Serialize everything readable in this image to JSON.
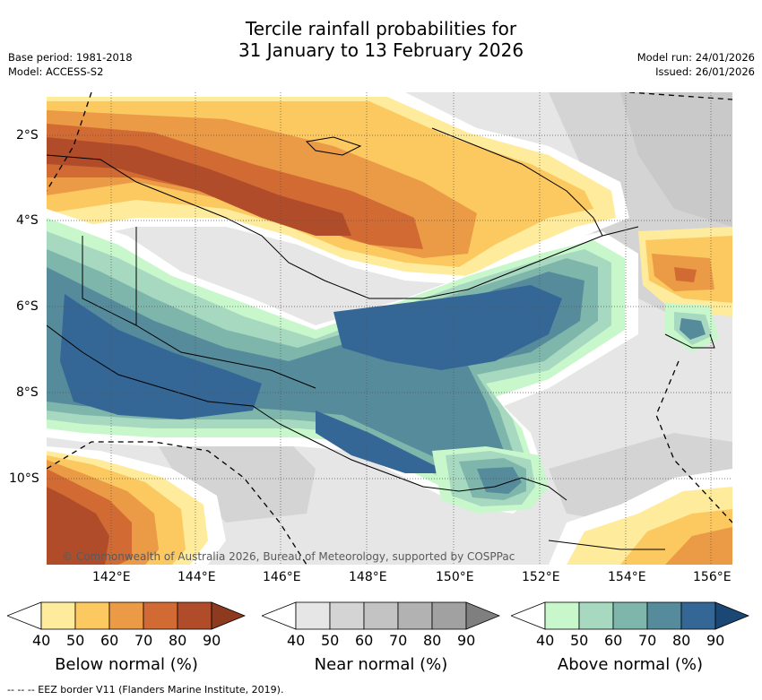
{
  "title": {
    "line1": "Tercile rainfall probabilities for",
    "line2": "31 January to 13 February 2026"
  },
  "meta_left": {
    "base_period": "Base period: 1981-2018",
    "model": "Model: ACCESS-S2"
  },
  "meta_right": {
    "model_run": "Model run: 24/01/2026",
    "issued": "Issued: 26/01/2026"
  },
  "map": {
    "lat_ticks": [
      "2°S",
      "4°S",
      "6°S",
      "8°S",
      "10°S"
    ],
    "lon_ticks": [
      "142°E",
      "144°E",
      "146°E",
      "148°E",
      "150°E",
      "152°E",
      "154°E",
      "156°E"
    ],
    "copyright": "© Commonwealth of Australia 2026, Bureau of Meteorology, supported by COSPPac"
  },
  "colorbars": [
    {
      "label": "Below normal (%)",
      "ticks": [
        "40",
        "50",
        "60",
        "70",
        "80",
        "90"
      ],
      "colors": [
        "#ffffff",
        "#feeb9c",
        "#fcc960",
        "#eb9a45",
        "#d26a33",
        "#b14c2b",
        "#8e3a1f"
      ]
    },
    {
      "label": "Near normal (%)",
      "ticks": [
        "40",
        "50",
        "60",
        "70",
        "80",
        "90"
      ],
      "colors": [
        "#ffffff",
        "#e6e6e6",
        "#d4d4d4",
        "#c3c3c3",
        "#b2b2b2",
        "#a1a1a1",
        "#7f7f7f"
      ]
    },
    {
      "label": "Above normal (%)",
      "ticks": [
        "40",
        "50",
        "60",
        "70",
        "80",
        "90"
      ],
      "colors": [
        "#ffffff",
        "#c8f7cb",
        "#a7d8c0",
        "#7fb6ac",
        "#568b9c",
        "#346795",
        "#1b4775"
      ]
    }
  ],
  "footer": {
    "eez_note": "-- -- -- EEZ border V11 (Flanders Marine Institute, 2019)."
  }
}
